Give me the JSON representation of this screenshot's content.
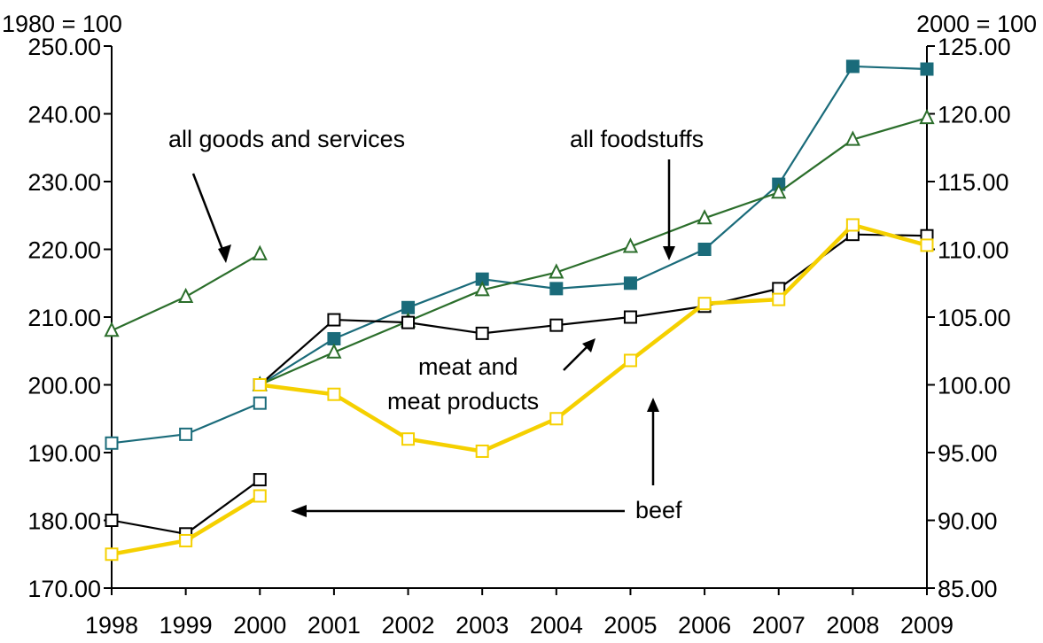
{
  "chart_data": {
    "type": "line",
    "title": "",
    "xlabel": "",
    "ylabel_left": "1980 = 100",
    "ylabel_right": "2000 = 100",
    "x": [
      "1998",
      "1999",
      "2000",
      "2001",
      "2002",
      "2003",
      "2004",
      "2005",
      "2006",
      "2007",
      "2008",
      "2009"
    ],
    "ylim_left": [
      170,
      250
    ],
    "ylim_right": [
      85,
      125
    ],
    "yticks_left": [
      "170.00",
      "180.00",
      "190.00",
      "200.00",
      "210.00",
      "220.00",
      "230.00",
      "240.00",
      "250.00"
    ],
    "yticks_right": [
      "85.00",
      "90.00",
      "95.00",
      "100.00",
      "105.00",
      "110.00",
      "115.00",
      "120.00",
      "125.00"
    ],
    "grid": false,
    "legend": "none",
    "series": [
      {
        "axis": "left",
        "color": "#1a6b7a",
        "marker": "square-open",
        "values": [
          191.4,
          192.7,
          197.3,
          null,
          null,
          null,
          null,
          null,
          null,
          null,
          null,
          null
        ]
      },
      {
        "axis": "right",
        "color": "#1a6b7a",
        "marker": "square-filled",
        "values": [
          null,
          null,
          100.0,
          103.4,
          105.7,
          107.8,
          107.1,
          107.5,
          110.0,
          114.8,
          123.5,
          123.3
        ]
      },
      {
        "axis": "left",
        "color": "#2b6e2b",
        "marker": "triangle-open",
        "values": [
          208.0,
          213.0,
          219.3,
          null,
          null,
          null,
          null,
          null,
          null,
          null,
          null,
          null
        ]
      },
      {
        "axis": "right",
        "color": "#2b6e2b",
        "marker": "triangle-open",
        "values": [
          null,
          null,
          100.0,
          102.4,
          104.7,
          107.0,
          108.3,
          110.2,
          112.3,
          114.2,
          118.1,
          119.7
        ]
      },
      {
        "axis": "left",
        "color": "#000000",
        "marker": "square-open",
        "values": [
          180.0,
          178.0,
          186.0,
          null,
          null,
          null,
          null,
          null,
          null,
          null,
          null,
          null
        ]
      },
      {
        "axis": "right",
        "color": "#000000",
        "marker": "square-open",
        "values": [
          null,
          null,
          100.0,
          104.8,
          104.6,
          103.8,
          104.4,
          105.0,
          105.8,
          107.1,
          111.1,
          111.0
        ]
      },
      {
        "axis": "left",
        "color": "#f5d000",
        "marker": "square-open",
        "values": [
          175.0,
          177.0,
          183.6,
          null,
          null,
          null,
          null,
          null,
          null,
          null,
          null,
          null
        ]
      },
      {
        "axis": "right",
        "color": "#f5d000",
        "marker": "square-open",
        "values": [
          null,
          null,
          100.0,
          99.3,
          96.0,
          95.1,
          97.5,
          101.8,
          106.0,
          106.3,
          111.8,
          110.3
        ]
      }
    ],
    "annotations": [
      {
        "id": "all-goods",
        "text": "all goods and services"
      },
      {
        "id": "all-foodstuffs",
        "text": "all foodstuffs"
      },
      {
        "id": "meat-1",
        "text": "meat and"
      },
      {
        "id": "meat-2",
        "text": "meat products"
      },
      {
        "id": "beef",
        "text": "beef"
      }
    ]
  }
}
